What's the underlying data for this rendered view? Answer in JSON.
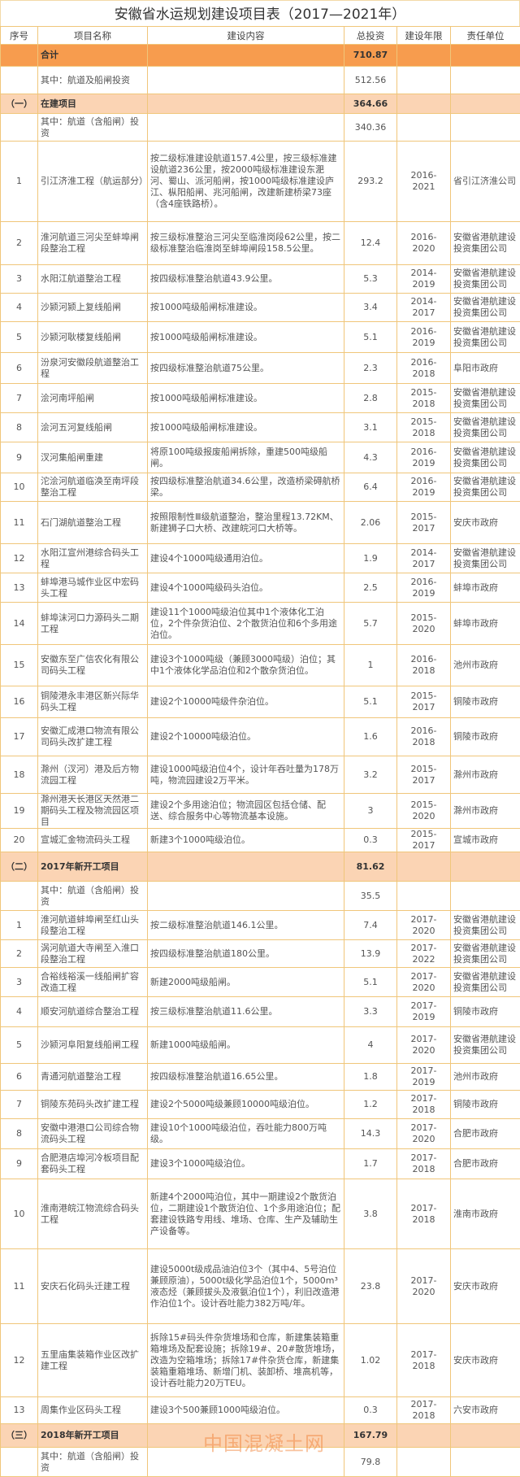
{
  "title": "安徽省水运规划建设项目表（2017—2021年）",
  "headers": [
    "序号",
    "项目名称",
    "建设内容",
    "总投资",
    "建设年限",
    "责任单位"
  ],
  "colors": {
    "border": "#f0c67a",
    "total_row": "#f79c4e",
    "section_row": "#fbd4b4",
    "watermark": "#f07828"
  },
  "watermark": "中国混凝土网",
  "rows": [
    {
      "type": "total",
      "seq": "",
      "name": "合计",
      "content": "",
      "total": "710.87",
      "years": "",
      "unit": ""
    },
    {
      "type": "sub",
      "seq": "",
      "name": "其中：航道及船闸投资",
      "content": "",
      "total": "512.56",
      "years": "",
      "unit": ""
    },
    {
      "type": "section",
      "seq": "（一）",
      "name": "在建项目",
      "content": "",
      "total": "364.66",
      "years": "",
      "unit": ""
    },
    {
      "type": "sub",
      "seq": "",
      "name": "其中：航道（含船闸）投资",
      "content": "",
      "total": "340.36",
      "years": "",
      "unit": ""
    },
    {
      "type": "item",
      "seq": "1",
      "name": "引江济淮工程（航运部分）",
      "content": "按二级标准建设航道157.4公里，按三级标准建设航道236公里，按2000吨级标准建设东淝河、蜀山、派河船闸，按1000吨级标准建设庐江、枞阳船闸、兆河船闸，改建新建桥梁73座（含4座铁路桥）。",
      "total": "293.2",
      "years": "2016-2021",
      "unit": "省引江济淮公司"
    },
    {
      "type": "item",
      "seq": "2",
      "name": "淮河航道三河尖至蚌埠闸段整治工程",
      "content": "按三级标准整治三河尖至临淮岗段62公里，按二级标准整治临淮岗至蚌埠闸段158.5公里。",
      "total": "12.4",
      "years": "2016-2020",
      "unit": "安徽省港航建设投资集团公司"
    },
    {
      "type": "item",
      "seq": "3",
      "name": "水阳江航道整治工程",
      "content": "按四级标准整治航道43.9公里。",
      "total": "5.3",
      "years": "2014-2019",
      "unit": "安徽省港航建设投资集团公司"
    },
    {
      "type": "item",
      "seq": "4",
      "name": "沙颍河颍上复线船闸",
      "content": "按1000吨级船闸标准建设。",
      "total": "3.4",
      "years": "2014-2017",
      "unit": "安徽省港航建设投资集团公司"
    },
    {
      "type": "item",
      "seq": "5",
      "name": "沙颍河耿楼复线船闸",
      "content": "按1000吨级船闸标准建设。",
      "total": "5.1",
      "years": "2016-2019",
      "unit": "安徽省港航建设投资集团公司"
    },
    {
      "type": "item",
      "seq": "6",
      "name": "汾泉河安徽段航道整治工程",
      "content": "按四级标准整治航道75公里。",
      "total": "2.3",
      "years": "2016-2018",
      "unit": "阜阳市政府"
    },
    {
      "type": "item",
      "seq": "7",
      "name": "浍河南坪船闸",
      "content": "按1000吨级船闸标准建设。",
      "total": "2.8",
      "years": "2015-2018",
      "unit": "安徽省港航建设投资集团公司"
    },
    {
      "type": "item",
      "seq": "8",
      "name": "浍河五河复线船闸",
      "content": "按1000吨级船闸标准建设。",
      "total": "3.1",
      "years": "2015-2018",
      "unit": "安徽省港航建设投资集团公司"
    },
    {
      "type": "item",
      "seq": "9",
      "name": "汊河集船闸重建",
      "content": "将原100吨级报废船闸拆除，重建500吨级船闸。",
      "total": "4.3",
      "years": "2016-2019",
      "unit": "安徽省港航建设投资集团公司"
    },
    {
      "type": "item",
      "seq": "10",
      "name": "沱浍河航道临涣至南坪段整治工程",
      "content": "按四级标准整治航道34.6公里，改造桥梁碍航桥梁。",
      "total": "6.4",
      "years": "2016-2019",
      "unit": "安徽省港航建设投资集团公司"
    },
    {
      "type": "item",
      "seq": "11",
      "name": "石门湖航道整治工程",
      "content": "按照限制性Ⅲ级航道整治，整治里程13.72KM、新建狮子口大桥、改建皖河口大桥等。",
      "total": "2.06",
      "years": "2015-2017",
      "unit": "安庆市政府"
    },
    {
      "type": "item",
      "seq": "12",
      "name": "水阳江宣州港综合码头工程",
      "content": "建设4个1000吨级通用泊位。",
      "total": "1.9",
      "years": "2014-2017",
      "unit": "安徽省港航建设投资集团公司"
    },
    {
      "type": "item",
      "seq": "13",
      "name": "蚌埠港马城作业区中宏码头工程",
      "content": "建设4个1000吨级码头泊位。",
      "total": "2.5",
      "years": "2016-2019",
      "unit": "蚌埠市政府"
    },
    {
      "type": "item",
      "seq": "14",
      "name": "蚌埠沫河口力源码头二期工程",
      "content": "建设11个1000吨级泊位其中1个液体化工泊位，2个件杂货泊位、2个散货泊位和6个多用途泊位。",
      "total": "5.7",
      "years": "2015-2020",
      "unit": "蚌埠市政府"
    },
    {
      "type": "item",
      "seq": "15",
      "name": "安徽东至广信农化有限公司码头工程",
      "content": "建设3个1000吨级（兼顾3000吨级）泊位；其中1个液体化学品泊位和2个散杂货泊位。",
      "total": "1",
      "years": "2016-2018",
      "unit": "池州市政府"
    },
    {
      "type": "item",
      "seq": "16",
      "name": "铜陵港永丰港区新兴际华码头工程",
      "content": "建设2个10000吨级件杂泊位。",
      "total": "5.1",
      "years": "2015-2017",
      "unit": "铜陵市政府"
    },
    {
      "type": "item",
      "seq": "17",
      "name": "安徽汇成港口物流有限公司码头改扩建工程",
      "content": "建设2个10000吨级泊位。",
      "total": "1.6",
      "years": "2016-2018",
      "unit": "铜陵市政府"
    },
    {
      "type": "item",
      "seq": "18",
      "name": "滁州（汊河）港及后方物流园工程",
      "content": "建设1000吨级泊位4个，设计年吞吐量为178万吨，物流园建设2万平米。",
      "total": "3.2",
      "years": "2015-2017",
      "unit": "滁州市政府"
    },
    {
      "type": "item",
      "seq": "19",
      "name": "滁州港天长港区天然港二期码头工程及物流园区项目",
      "content": "建设2个多用途泊位；物流园区包括仓储、配送、综合服务中心等物流基本设施。",
      "total": "3",
      "years": "2015-2020",
      "unit": "滁州市政府"
    },
    {
      "type": "item",
      "seq": "20",
      "name": "宣城汇金物流码头工程",
      "content": "新建3个1000吨级泊位。",
      "total": "0.3",
      "years": "2015-2017",
      "unit": "宣城市政府"
    },
    {
      "type": "section",
      "seq": "（二）",
      "name": "2017年新开工项目",
      "content": "",
      "total": "81.62",
      "years": "",
      "unit": ""
    },
    {
      "type": "sub",
      "seq": "",
      "name": "其中：航道（含船闸）投资",
      "content": "",
      "total": "35.5",
      "years": "",
      "unit": ""
    },
    {
      "type": "item",
      "seq": "1",
      "name": "淮河航道蚌埠闸至红山头段整治工程",
      "content": "按二级标准整治航道146.1公里。",
      "total": "7.4",
      "years": "2017-2020",
      "unit": "安徽省港航建设投资集团公司"
    },
    {
      "type": "item",
      "seq": "2",
      "name": "涡河航道大寺闸至入淮口段整治工程",
      "content": "按四级标准整治航道180公里。",
      "total": "13.9",
      "years": "2017-2022",
      "unit": "安徽省港航建设投资集团公司"
    },
    {
      "type": "item",
      "seq": "3",
      "name": "合裕线裕溪一线船闸扩容改造工程",
      "content": "新建2000吨级船闸。",
      "total": "5.1",
      "years": "2017-2020",
      "unit": "安徽省港航建设投资集团公司"
    },
    {
      "type": "item",
      "seq": "4",
      "name": "顺安河航道综合整治工程",
      "content": "按三级标准整治航道11.6公里。",
      "total": "3.3",
      "years": "2017-2019",
      "unit": "铜陵市政府"
    },
    {
      "type": "item",
      "seq": "5",
      "name": "沙颍河阜阳复线船闸工程",
      "content": "新建1000吨级船闸。",
      "total": "4",
      "years": "2017-2020",
      "unit": "安徽省港航建设投资集团公司"
    },
    {
      "type": "item",
      "seq": "6",
      "name": "青通河航道整治工程",
      "content": "按四级标准整治航道16.65公里。",
      "total": "1.8",
      "years": "2017-2019",
      "unit": "池州市政府"
    },
    {
      "type": "item",
      "seq": "7",
      "name": "铜陵东苑码头改扩建工程",
      "content": "建设2个5000吨级兼顾10000吨级泊位。",
      "total": "1.2",
      "years": "2017-2018",
      "unit": "铜陵市政府"
    },
    {
      "type": "item",
      "seq": "8",
      "name": "安徽中港港口公司综合物流码头工程",
      "content": "建设10个1000吨级泊位，吞吐能力800万吨级。",
      "total": "14.3",
      "years": "2017-2020",
      "unit": "合肥市政府"
    },
    {
      "type": "item",
      "seq": "9",
      "name": "合肥港店埠河冷板项目配套码头工程",
      "content": "建设3个1000吨级泊位。",
      "total": "1.7",
      "years": "2017-2018",
      "unit": "合肥市政府"
    },
    {
      "type": "item",
      "seq": "10",
      "name": "淮南港皖江物流综合码头工程",
      "content": "新建4个2000吨泊位，其中一期建设2个散货泊位，二期建设1个散货泊位、1个多用途泊位；配套建设铁路专用线、堆场、仓库、生产及辅助生产设备等。",
      "total": "3.8",
      "years": "2017-2018",
      "unit": "淮南市政府"
    },
    {
      "type": "item",
      "seq": "11",
      "name": "安庆石化码头迁建工程",
      "content": "建设5000t级成品油泊位3个（其中4、5号泊位兼顾原油），5000t级化学品泊位1个，5000m³液态烃（兼顾拔头及液氨泊位1个），利旧改造港作泊位1个。设计吞吐能力382万吨/年。",
      "total": "23.8",
      "years": "2017-2020",
      "unit": "安庆市政府"
    },
    {
      "type": "item",
      "seq": "12",
      "name": "五里庙集装箱作业区改扩建工程",
      "content": "拆除15#码头件杂货堆场和仓库，新建集装箱重箱堆场及配套设施；拆除19#、20#散货堆场，改造为空箱堆场；拆除17#件杂货仓库，新建集装箱重箱堆场、新增门机、装卸桥、堆高机等，设计吞吐能力20万TEU。",
      "total": "1.02",
      "years": "2017-2018",
      "unit": "安庆市政府"
    },
    {
      "type": "item",
      "seq": "13",
      "name": "周集作业区码头工程",
      "content": "建设3个500兼顾1000吨级泊位。",
      "total": "0.3",
      "years": "2017-2018",
      "unit": "六安市政府"
    },
    {
      "type": "section",
      "seq": "（三）",
      "name": "2018年新开工项目",
      "content": "",
      "total": "167.79",
      "years": "",
      "unit": ""
    },
    {
      "type": "sub",
      "seq": "",
      "name": "其中：航道（含船闸）投资",
      "content": "",
      "total": "79.8",
      "years": "",
      "unit": ""
    }
  ]
}
